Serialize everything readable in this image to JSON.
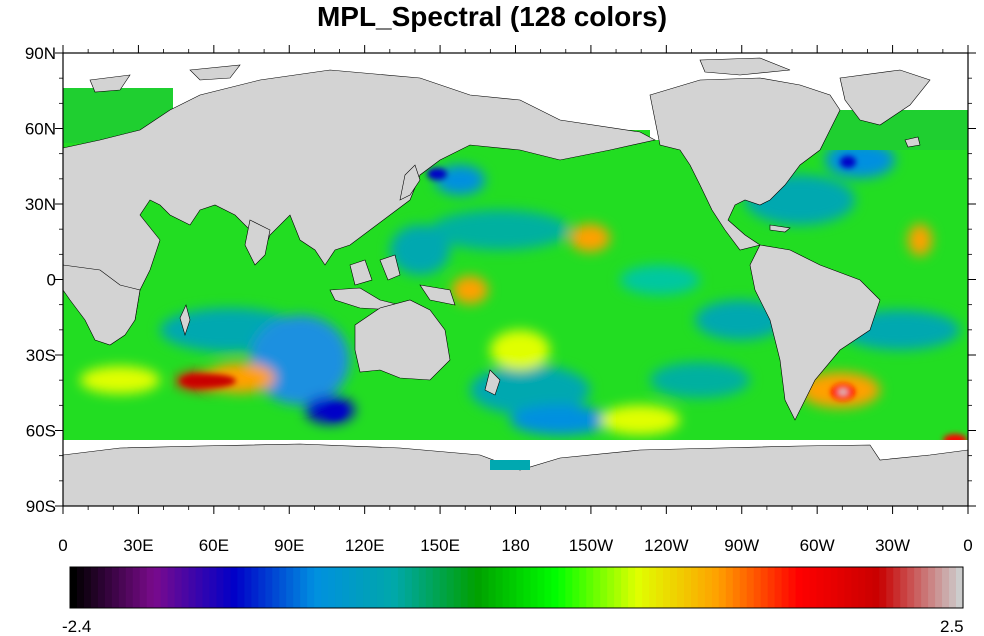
{
  "title": "MPL_Spectral (128 colors)",
  "map": {
    "projection": "cylindrical-equidistant",
    "lon_range": [
      0,
      360
    ],
    "lat_range": [
      -90,
      90
    ],
    "land_color": "#D3D3D3",
    "missing_color": "#FFFFFF",
    "lat_ticks": [
      {
        "value": 90,
        "label": "90N"
      },
      {
        "value": 60,
        "label": "60N"
      },
      {
        "value": 30,
        "label": "30N"
      },
      {
        "value": 0,
        "label": "0"
      },
      {
        "value": -30,
        "label": "30S"
      },
      {
        "value": -60,
        "label": "60S"
      },
      {
        "value": -90,
        "label": "90S"
      }
    ],
    "lon_ticks": [
      {
        "value": 0,
        "label": "0"
      },
      {
        "value": 30,
        "label": "30E"
      },
      {
        "value": 60,
        "label": "60E"
      },
      {
        "value": 90,
        "label": "90E"
      },
      {
        "value": 120,
        "label": "120E"
      },
      {
        "value": 150,
        "label": "150E"
      },
      {
        "value": 180,
        "label": "180"
      },
      {
        "value": 210,
        "label": "150W"
      },
      {
        "value": 240,
        "label": "120W"
      },
      {
        "value": 270,
        "label": "90W"
      },
      {
        "value": 300,
        "label": "60W"
      },
      {
        "value": 330,
        "label": "30W"
      },
      {
        "value": 360,
        "label": "0"
      }
    ]
  },
  "colorbar": {
    "min_label": "-2.4",
    "max_label": "2.5",
    "min": -2.4,
    "max": 2.5,
    "colormap": "MPL_Spectral",
    "n_colors": 128
  },
  "colors": {
    "stops": [
      "#000000",
      "#7a0a8c",
      "#0000c8",
      "#0090e0",
      "#00a8a8",
      "#00a000",
      "#00ff00",
      "#e0ff00",
      "#ffa000",
      "#ff0000",
      "#c80000",
      "#cccccc"
    ]
  }
}
